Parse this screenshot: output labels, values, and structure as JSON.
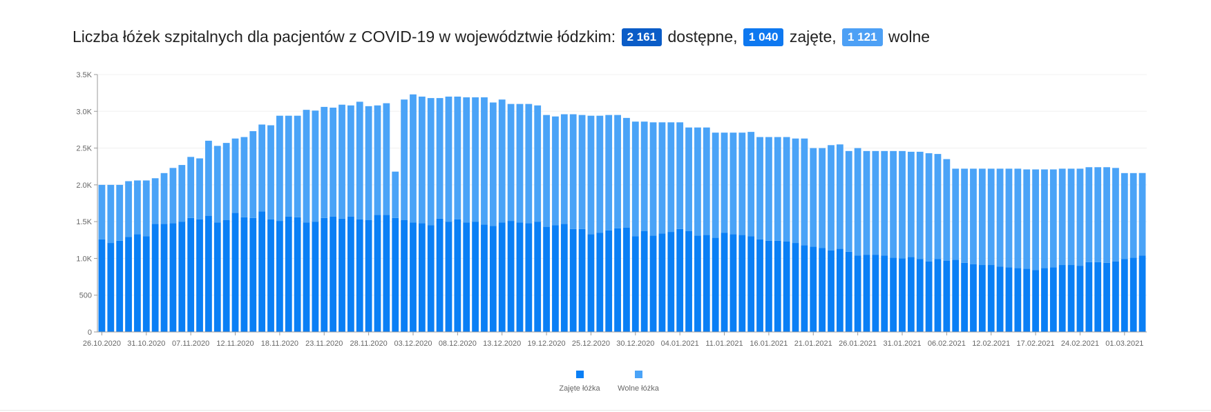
{
  "header": {
    "prefix": "Liczba łóżek szpitalnych dla pacjentów z COVID-19 w województwie łódzkim:",
    "total_value": "2 161",
    "total_label": "dostępne,",
    "occupied_value": "1 040",
    "occupied_label": "zajęte,",
    "free_value": "1 121",
    "free_label": "wolne"
  },
  "colors": {
    "occupied": "#0a7ff5",
    "free": "#4aa3f7",
    "total_badge": "#0a5cc7"
  },
  "chart_data": {
    "type": "bar",
    "stacked": true,
    "ylim": [
      0,
      3500
    ],
    "yticks": [
      0,
      500,
      1000,
      1500,
      2000,
      2500,
      3000,
      3500
    ],
    "ytick_labels": [
      "0",
      "500",
      "1.0K",
      "1.5K",
      "2.0K",
      "2.5K",
      "3.0K",
      "3.5K"
    ],
    "xtick_labels": [
      "26.10.2020",
      "31.10.2020",
      "07.11.2020",
      "12.11.2020",
      "18.11.2020",
      "23.11.2020",
      "28.11.2020",
      "03.12.2020",
      "08.12.2020",
      "13.12.2020",
      "19.12.2020",
      "25.12.2020",
      "30.12.2020",
      "04.01.2021",
      "11.01.2021",
      "16.01.2021",
      "21.01.2021",
      "26.01.2021",
      "31.01.2021",
      "06.02.2021",
      "12.02.2021",
      "17.02.2021",
      "24.02.2021",
      "01.03.2021"
    ],
    "xtick_bar_index": [
      0,
      5,
      10,
      15,
      20,
      25,
      30,
      35,
      40,
      45,
      50,
      55,
      60,
      65,
      70,
      75,
      80,
      85,
      90,
      95,
      100,
      105,
      110,
      115
    ],
    "legend_position": "bottom-center",
    "series": [
      {
        "name": "Zajęte łóżka",
        "values": [
          1260,
          1210,
          1240,
          1290,
          1330,
          1300,
          1470,
          1470,
          1480,
          1500,
          1550,
          1530,
          1580,
          1490,
          1520,
          1620,
          1560,
          1550,
          1640,
          1530,
          1510,
          1570,
          1560,
          1490,
          1500,
          1550,
          1570,
          1540,
          1570,
          1530,
          1520,
          1590,
          1590,
          1550,
          1520,
          1490,
          1480,
          1450,
          1540,
          1500,
          1530,
          1490,
          1500,
          1460,
          1440,
          1490,
          1510,
          1490,
          1480,
          1500,
          1430,
          1450,
          1470,
          1400,
          1400,
          1330,
          1350,
          1380,
          1410,
          1420,
          1300,
          1370,
          1310,
          1340,
          1360,
          1400,
          1370,
          1310,
          1320,
          1280,
          1350,
          1330,
          1320,
          1300,
          1260,
          1240,
          1240,
          1230,
          1210,
          1180,
          1160,
          1140,
          1110,
          1130,
          1090,
          1040,
          1050,
          1050,
          1040,
          1010,
          1000,
          1020,
          990,
          960,
          990,
          970,
          980,
          940,
          920,
          910,
          910,
          890,
          880,
          870,
          860,
          840,
          870,
          880,
          910,
          910,
          900,
          950,
          950,
          940,
          960,
          990,
          1010,
          1040
        ]
      },
      {
        "name": "Wolne łóżka",
        "values": [
          740,
          790,
          760,
          760,
          730,
          760,
          620,
          690,
          750,
          770,
          830,
          830,
          1020,
          1040,
          1050,
          1010,
          1090,
          1180,
          1180,
          1280,
          1430,
          1370,
          1380,
          1530,
          1510,
          1510,
          1480,
          1550,
          1510,
          1600,
          1550,
          1490,
          1520,
          630,
          1640,
          1740,
          1720,
          1730,
          1640,
          1700,
          1670,
          1700,
          1690,
          1730,
          1680,
          1670,
          1590,
          1610,
          1620,
          1580,
          1520,
          1480,
          1490,
          1560,
          1550,
          1610,
          1590,
          1570,
          1540,
          1490,
          1560,
          1490,
          1540,
          1510,
          1490,
          1450,
          1410,
          1470,
          1460,
          1430,
          1360,
          1380,
          1390,
          1420,
          1390,
          1410,
          1410,
          1420,
          1420,
          1450,
          1340,
          1360,
          1430,
          1420,
          1370,
          1460,
          1410,
          1410,
          1420,
          1450,
          1460,
          1430,
          1460,
          1470,
          1430,
          1380,
          1240,
          1280,
          1300,
          1310,
          1310,
          1330,
          1340,
          1350,
          1350,
          1370,
          1340,
          1330,
          1310,
          1310,
          1320,
          1290,
          1290,
          1300,
          1270,
          1170,
          1150,
          1121
        ]
      }
    ]
  }
}
